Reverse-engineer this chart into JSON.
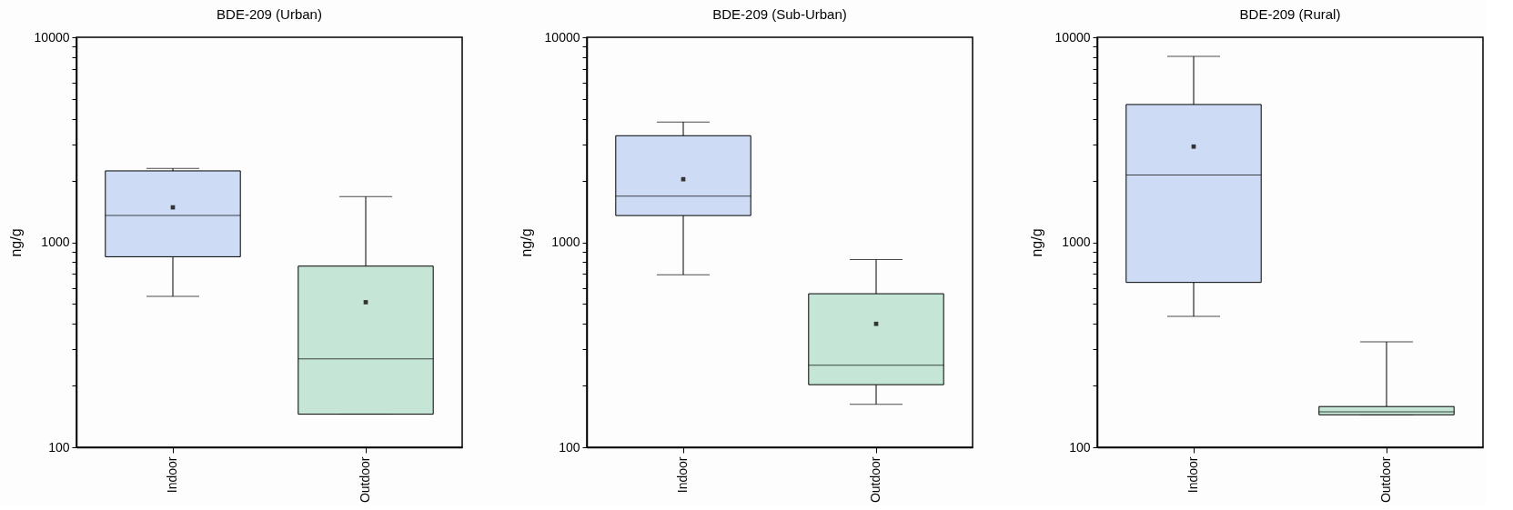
{
  "chart_data": [
    {
      "type": "box",
      "title": "BDE-209 (Urban)",
      "ylabel": "ng/g",
      "categories": [
        "Indoor",
        "Outdoor"
      ],
      "colors": [
        "#cddcf4",
        "#c5e6d6"
      ],
      "log": true,
      "ylim": [
        100,
        10000
      ],
      "yticks": [
        100,
        {
          "value": 200,
          "label": null
        },
        {
          "value": 300,
          "label": null
        },
        {
          "value": 400,
          "label": null
        },
        {
          "value": 500,
          "label": null
        },
        {
          "value": 600,
          "label": null
        },
        {
          "value": 700,
          "label": null
        },
        {
          "value": 800,
          "label": null
        },
        {
          "value": 900,
          "label": null
        },
        1000,
        {
          "value": 2000,
          "label": null
        },
        {
          "value": 3000,
          "label": null
        },
        {
          "value": 4000,
          "label": null
        },
        {
          "value": 5000,
          "label": null
        },
        {
          "value": 6000,
          "label": null
        },
        {
          "value": 7000,
          "label": null
        },
        {
          "value": 8000,
          "label": null
        },
        {
          "value": 9000,
          "label": null
        },
        10000
      ],
      "boxes": [
        {
          "low": 545,
          "q1": 850,
          "median": 1350,
          "q3": 2230,
          "high": 2290,
          "mean": 1480
        },
        {
          "low": 145,
          "q1": 145,
          "median": 270,
          "q3": 765,
          "high": 1670,
          "mean": 510
        }
      ]
    },
    {
      "type": "box",
      "title": "BDE-209 (Sub-Urban)",
      "ylabel": "ng/g",
      "categories": [
        "Indoor",
        "Outdoor"
      ],
      "colors": [
        "#cddcf4",
        "#c5e6d6"
      ],
      "log": true,
      "ylim": [
        100,
        10000
      ],
      "yticks": [
        100,
        {
          "value": 200,
          "label": null
        },
        {
          "value": 300,
          "label": null
        },
        {
          "value": 400,
          "label": null
        },
        {
          "value": 500,
          "label": null
        },
        {
          "value": 600,
          "label": null
        },
        {
          "value": 700,
          "label": null
        },
        {
          "value": 800,
          "label": null
        },
        {
          "value": 900,
          "label": null
        },
        1000,
        {
          "value": 2000,
          "label": null
        },
        {
          "value": 3000,
          "label": null
        },
        {
          "value": 4000,
          "label": null
        },
        {
          "value": 5000,
          "label": null
        },
        {
          "value": 6000,
          "label": null
        },
        {
          "value": 7000,
          "label": null
        },
        {
          "value": 8000,
          "label": null
        },
        {
          "value": 9000,
          "label": null
        },
        10000
      ],
      "boxes": [
        {
          "low": 695,
          "q1": 1350,
          "median": 1680,
          "q3": 3310,
          "high": 3860,
          "mean": 2030
        },
        {
          "low": 162,
          "q1": 202,
          "median": 251,
          "q3": 561,
          "high": 823,
          "mean": 400
        }
      ]
    },
    {
      "type": "box",
      "title": "BDE-209 (Rural)",
      "ylabel": "ng/g",
      "categories": [
        "Indoor",
        "Outdoor"
      ],
      "colors": [
        "#cddcf4",
        "#c5e6d6"
      ],
      "log": true,
      "ylim": [
        100,
        10000
      ],
      "yticks": [
        100,
        {
          "value": 200,
          "label": null
        },
        {
          "value": 300,
          "label": null
        },
        {
          "value": 400,
          "label": null
        },
        {
          "value": 500,
          "label": null
        },
        {
          "value": 600,
          "label": null
        },
        {
          "value": 700,
          "label": null
        },
        {
          "value": 800,
          "label": null
        },
        {
          "value": 900,
          "label": null
        },
        1000,
        {
          "value": 2000,
          "label": null
        },
        {
          "value": 3000,
          "label": null
        },
        {
          "value": 4000,
          "label": null
        },
        {
          "value": 5000,
          "label": null
        },
        {
          "value": 6000,
          "label": null
        },
        {
          "value": 7000,
          "label": null
        },
        {
          "value": 8000,
          "label": null
        },
        {
          "value": 9000,
          "label": null
        },
        10000
      ],
      "boxes": [
        {
          "low": 435,
          "q1": 637,
          "median": 2130,
          "q3": 4700,
          "high": 8070,
          "mean": 2930
        },
        {
          "low": 144,
          "q1": 144,
          "median": 149,
          "q3": 158,
          "high": 327
        }
      ]
    }
  ]
}
